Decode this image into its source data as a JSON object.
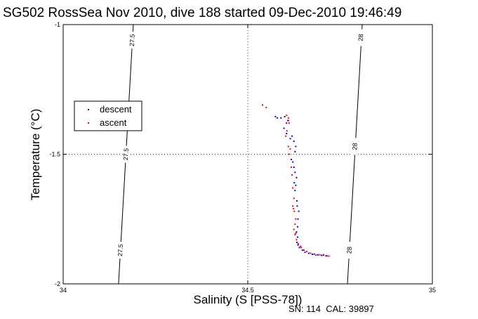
{
  "chart_data": {
    "type": "scatter",
    "title": "SG502 RossSea Nov 2010, dive 188 started 09-Dec-2010 19:46:49",
    "xlabel": "Salinity (S [PSS-78])",
    "ylabel": "Temperature (°C)",
    "xlim": [
      34,
      35
    ],
    "ylim": [
      -2,
      -1
    ],
    "x_ticks": [
      "34",
      "34.5",
      "35"
    ],
    "y_ticks": [
      "-1",
      "-1.5",
      "-2"
    ],
    "grid": "dotted at x=34.5 and y=-1.5",
    "legend_placement": "left",
    "footer": "SN: 114  CAL: 39897",
    "density_contours": [
      {
        "label": "27.5",
        "points": [
          [
            34.15,
            -2.0
          ],
          [
            34.19,
            -1.0
          ]
        ],
        "label_positions": [
          [
            34.187,
            -1.06
          ],
          [
            34.17,
            -1.5
          ],
          [
            34.155,
            -1.87
          ]
        ]
      },
      {
        "label": "28",
        "points": [
          [
            34.77,
            -2.0
          ],
          [
            34.81,
            -1.0
          ]
        ],
        "label_positions": [
          [
            34.806,
            -1.05
          ],
          [
            34.79,
            -1.47
          ],
          [
            34.775,
            -1.87
          ]
        ]
      }
    ],
    "series": [
      {
        "name": "descent",
        "color": "#0000ff",
        "points": [
          [
            34.575,
            -1.355
          ],
          [
            34.58,
            -1.36
          ],
          [
            34.59,
            -1.36
          ],
          [
            34.6,
            -1.355
          ],
          [
            34.605,
            -1.38
          ],
          [
            34.61,
            -1.37
          ],
          [
            34.598,
            -1.4
          ],
          [
            34.605,
            -1.42
          ],
          [
            34.615,
            -1.44
          ],
          [
            34.62,
            -1.43
          ],
          [
            34.625,
            -1.45
          ],
          [
            34.628,
            -1.49
          ],
          [
            34.63,
            -1.47
          ],
          [
            34.625,
            -1.55
          ],
          [
            34.628,
            -1.57
          ],
          [
            34.632,
            -1.59
          ],
          [
            34.63,
            -1.62
          ],
          [
            34.628,
            -1.64
          ],
          [
            34.633,
            -1.68
          ],
          [
            34.638,
            -1.72
          ],
          [
            34.636,
            -1.75
          ],
          [
            34.635,
            -1.78
          ],
          [
            34.632,
            -1.8
          ],
          [
            34.635,
            -1.82
          ],
          [
            34.633,
            -1.84
          ],
          [
            34.636,
            -1.85
          ],
          [
            34.64,
            -1.86
          ],
          [
            34.648,
            -1.87
          ],
          [
            34.655,
            -1.878
          ],
          [
            34.665,
            -1.882
          ],
          [
            34.675,
            -1.886
          ],
          [
            34.68,
            -1.885
          ],
          [
            34.69,
            -1.888
          ],
          [
            34.7,
            -1.89
          ],
          [
            34.705,
            -1.888
          ],
          [
            34.712,
            -1.892
          ],
          [
            34.618,
            -1.52
          ],
          [
            34.622,
            -1.53
          ],
          [
            34.626,
            -1.61
          ],
          [
            34.634,
            -1.7
          ]
        ]
      },
      {
        "name": "ascent",
        "color": "#ff0000",
        "points": [
          [
            34.54,
            -1.31
          ],
          [
            34.55,
            -1.32
          ],
          [
            34.605,
            -1.35
          ],
          [
            34.61,
            -1.36
          ],
          [
            34.608,
            -1.37
          ],
          [
            34.612,
            -1.38
          ],
          [
            34.606,
            -1.41
          ],
          [
            34.603,
            -1.43
          ],
          [
            34.61,
            -1.47
          ],
          [
            34.615,
            -1.48
          ],
          [
            34.612,
            -1.5
          ],
          [
            34.618,
            -1.55
          ],
          [
            34.62,
            -1.58
          ],
          [
            34.622,
            -1.63
          ],
          [
            34.625,
            -1.67
          ],
          [
            34.622,
            -1.7
          ],
          [
            34.626,
            -1.72
          ],
          [
            34.63,
            -1.75
          ],
          [
            34.628,
            -1.77
          ],
          [
            34.625,
            -1.79
          ],
          [
            34.628,
            -1.81
          ],
          [
            34.632,
            -1.83
          ],
          [
            34.637,
            -1.845
          ],
          [
            34.645,
            -1.86
          ],
          [
            34.652,
            -1.87
          ],
          [
            34.66,
            -1.875
          ],
          [
            34.67,
            -1.882
          ],
          [
            34.685,
            -1.889
          ],
          [
            34.695,
            -1.888
          ],
          [
            34.705,
            -1.89
          ],
          [
            34.715,
            -1.892
          ],
          [
            34.72,
            -1.893
          ],
          [
            34.624,
            -1.71
          ],
          [
            34.63,
            -1.805
          ],
          [
            34.643,
            -1.855
          ]
        ]
      }
    ]
  }
}
